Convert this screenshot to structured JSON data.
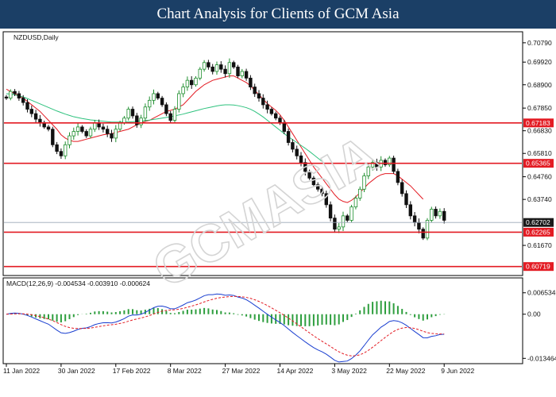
{
  "header": {
    "title": "Chart Analysis for Clients of GCM Asia"
  },
  "chart_data": {
    "type": "candlestick",
    "symbol_label": "NZDUSD,Daily",
    "watermark": "GCMASIA",
    "price_axis": {
      "ylim": [
        0.6035,
        0.7125
      ],
      "ticks": [
        "0.70790",
        "0.69920",
        "0.68900",
        "0.67850",
        "0.66830",
        "0.65810",
        "0.64760",
        "0.63740",
        "0.61670"
      ]
    },
    "x_ticks": [
      {
        "label": "11 Jan 2022",
        "index": 0
      },
      {
        "label": "30 Jan 2022",
        "index": 13
      },
      {
        "label": "17 Feb 2022",
        "index": 26
      },
      {
        "label": "8 Mar 2022",
        "index": 39
      },
      {
        "label": "27 Mar 2022",
        "index": 52
      },
      {
        "label": "14 Apr 2022",
        "index": 65
      },
      {
        "label": "3 May 2022",
        "index": 78
      },
      {
        "label": "22 May 2022",
        "index": 91
      },
      {
        "label": "9 Jun 2022",
        "index": 104
      }
    ],
    "horizontal_levels": [
      {
        "value": 0.67183,
        "label": "0.67183",
        "color": "#e31b23"
      },
      {
        "value": 0.65365,
        "label": "0.65365",
        "color": "#e31b23"
      },
      {
        "value": 0.62265,
        "label": "0.62265",
        "color": "#e31b23"
      },
      {
        "value": 0.60719,
        "label": "0.60719",
        "color": "#e31b23"
      }
    ],
    "current_price": {
      "value": 0.62702,
      "label": "0.62702",
      "color": "#9aa7b8"
    },
    "candle_up_color": "#1f8f2f",
    "candle_down_color": "#111111",
    "closes": [
      0.683,
      0.686,
      0.685,
      0.683,
      0.681,
      0.678,
      0.676,
      0.6735,
      0.672,
      0.67,
      0.669,
      0.662,
      0.659,
      0.657,
      0.662,
      0.666,
      0.668,
      0.67,
      0.668,
      0.666,
      0.669,
      0.672,
      0.67,
      0.669,
      0.667,
      0.665,
      0.669,
      0.672,
      0.674,
      0.678,
      0.675,
      0.671,
      0.674,
      0.679,
      0.682,
      0.685,
      0.683,
      0.68,
      0.676,
      0.673,
      0.678,
      0.685,
      0.688,
      0.691,
      0.689,
      0.692,
      0.696,
      0.699,
      0.697,
      0.695,
      0.698,
      0.696,
      0.694,
      0.699,
      0.697,
      0.693,
      0.695,
      0.692,
      0.688,
      0.685,
      0.683,
      0.68,
      0.678,
      0.676,
      0.674,
      0.672,
      0.668,
      0.663,
      0.66,
      0.657,
      0.654,
      0.65,
      0.647,
      0.644,
      0.642,
      0.64,
      0.635,
      0.629,
      0.624,
      0.625,
      0.63,
      0.628,
      0.634,
      0.638,
      0.642,
      0.648,
      0.652,
      0.654,
      0.652,
      0.655,
      0.653,
      0.656,
      0.65,
      0.645,
      0.64,
      0.635,
      0.63,
      0.627,
      0.624,
      0.62,
      0.628,
      0.633,
      0.63,
      0.632,
      0.628
    ],
    "moving_averages": [
      {
        "color": "#e31b23",
        "values": [
          0.687,
          0.686,
          0.685,
          0.684,
          0.683,
          0.6815,
          0.68,
          0.6785,
          0.677,
          0.675,
          0.673,
          0.671,
          0.669,
          0.6665,
          0.665,
          0.664,
          0.6635,
          0.6635,
          0.664,
          0.6645,
          0.665,
          0.6655,
          0.666,
          0.6665,
          0.6668,
          0.667,
          0.6675,
          0.668,
          0.6685,
          0.669,
          0.67,
          0.671,
          0.672,
          0.6725,
          0.673,
          0.674,
          0.675,
          0.676,
          0.677,
          0.6775,
          0.678,
          0.679,
          0.68,
          0.682,
          0.684,
          0.686,
          0.6875,
          0.689,
          0.69,
          0.691,
          0.6915,
          0.692,
          0.6925,
          0.693,
          0.693,
          0.692,
          0.691,
          0.69,
          0.6885,
          0.6865,
          0.6845,
          0.6825,
          0.6805,
          0.679,
          0.6775,
          0.6755,
          0.673,
          0.67,
          0.667,
          0.664,
          0.661,
          0.658,
          0.655,
          0.652,
          0.6495,
          0.647,
          0.6445,
          0.642,
          0.6395,
          0.6375,
          0.6365,
          0.636,
          0.637,
          0.6385,
          0.6405,
          0.6425,
          0.6445,
          0.646,
          0.6475,
          0.6485,
          0.649,
          0.649,
          0.649,
          0.648,
          0.6465,
          0.645,
          0.6435,
          0.6415,
          0.6395,
          0.6375
        ]
      },
      {
        "color": "#2ec27e",
        "values": [
          0.685,
          0.6848,
          0.6845,
          0.684,
          0.6835,
          0.6828,
          0.682,
          0.6812,
          0.6804,
          0.6796,
          0.6788,
          0.678,
          0.6772,
          0.6765,
          0.6758,
          0.6752,
          0.6746,
          0.6742,
          0.6738,
          0.6735,
          0.6732,
          0.673,
          0.6728,
          0.6726,
          0.6724,
          0.6722,
          0.6722,
          0.6722,
          0.6722,
          0.6723,
          0.6724,
          0.6725,
          0.6727,
          0.6729,
          0.6731,
          0.6734,
          0.6737,
          0.674,
          0.6743,
          0.6746,
          0.675,
          0.6754,
          0.6758,
          0.6763,
          0.6768,
          0.6773,
          0.6778,
          0.6783,
          0.6787,
          0.6791,
          0.6795,
          0.6798,
          0.68,
          0.68,
          0.6799,
          0.6796,
          0.6792,
          0.6787,
          0.678,
          0.677,
          0.6758,
          0.6745,
          0.673,
          0.6715,
          0.67,
          0.6685,
          0.667,
          0.6656,
          0.6643,
          0.663,
          0.6617,
          0.6604,
          0.659,
          0.6575,
          0.656,
          0.6545
        ]
      }
    ],
    "macd": {
      "label": "MACD(12,26,9) -0.004534 -0.003910 -0.000624",
      "ylim": [
        -0.0146,
        0.0072
      ],
      "ticks": [
        "0.006534",
        "0.00",
        "-0.013464"
      ],
      "histogram_color": "#2e9e3e",
      "macd_color": "#1a3fd0",
      "signal_color": "#e31b23"
    }
  }
}
